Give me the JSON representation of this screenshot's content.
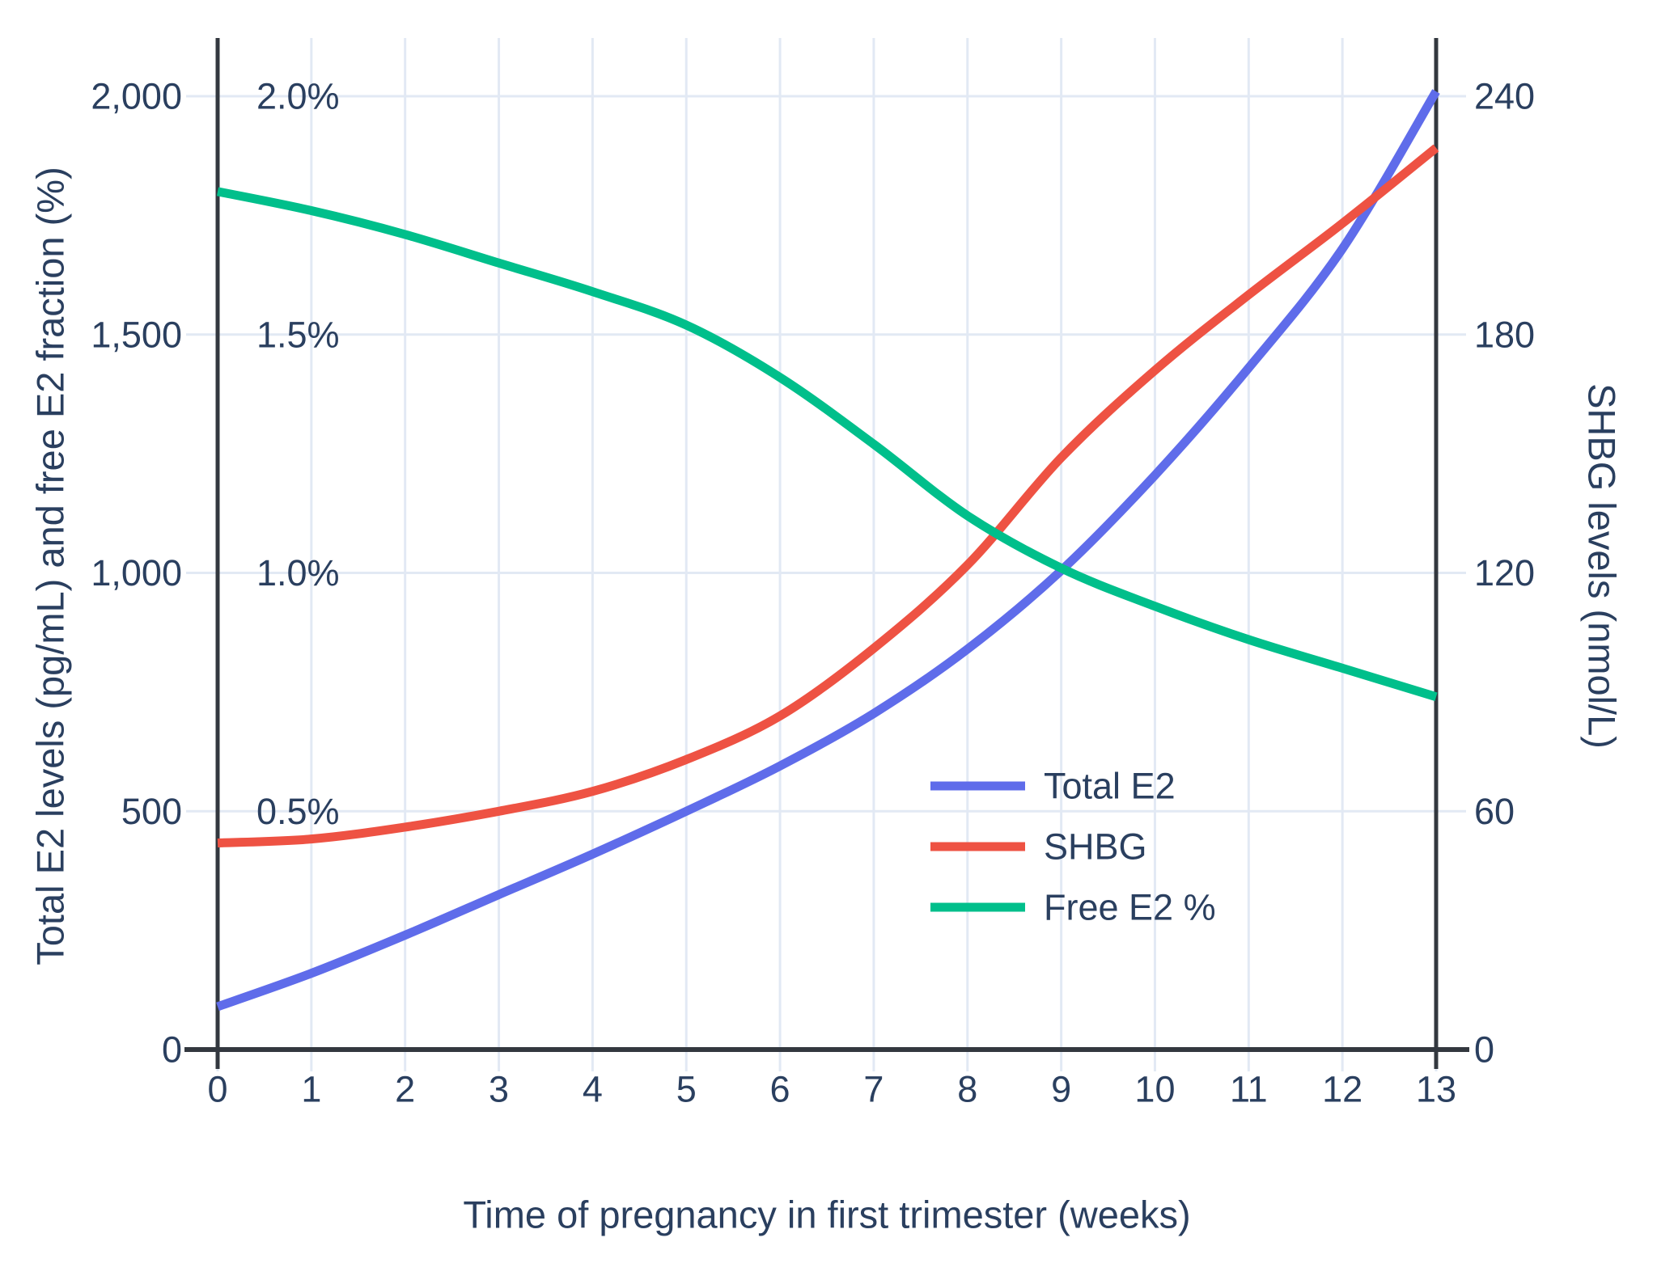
{
  "chart_data": {
    "type": "line",
    "xlabel": "Time of pregnancy in first trimester (weeks)",
    "ylabel_left": "Total E2 levels (pg/mL) and free E2 fraction (%)",
    "ylabel_right": "SHBG levels (nmol/L)",
    "x": [
      0,
      1,
      2,
      3,
      4,
      5,
      6,
      7,
      8,
      9,
      10,
      11,
      12,
      13
    ],
    "x_tick_labels": [
      "0",
      "1",
      "2",
      "3",
      "4",
      "5",
      "6",
      "7",
      "8",
      "9",
      "10",
      "11",
      "12",
      "13"
    ],
    "left_axis": {
      "tick_values": [
        0,
        500,
        1000,
        1500,
        2000
      ],
      "tick_labels": [
        "0",
        "500",
        "1,000",
        "1,500",
        "2,000"
      ],
      "range": [
        0,
        2120
      ]
    },
    "left_percent_labels": {
      "tick_values": [
        500,
        1000,
        1500,
        2000
      ],
      "tick_labels": [
        "0.5%",
        "1.0%",
        "1.5%",
        "2.0%"
      ]
    },
    "right_axis": {
      "tick_values": [
        0,
        60,
        120,
        180,
        240
      ],
      "tick_labels": [
        "0",
        "60",
        "120",
        "180",
        "240"
      ],
      "range": [
        0,
        254
      ]
    },
    "grid": true,
    "legend_position": "inside-right-middle",
    "series": [
      {
        "name": "Total E2",
        "axis": "left",
        "unit": "pg/mL",
        "color": "#5f6cea",
        "values": [
          90,
          160,
          240,
          325,
          410,
          500,
          595,
          705,
          840,
          1005,
          1205,
          1430,
          1680,
          2010
        ]
      },
      {
        "name": "SHBG",
        "axis": "right",
        "unit": "nmol/L",
        "color": "#ee5243",
        "values": [
          52,
          53,
          56,
          60,
          65,
          73,
          84,
          101,
          122,
          149,
          171,
          190,
          208,
          227
        ]
      },
      {
        "name": "Free E2 %",
        "axis": "left-percent",
        "unit": "%",
        "color": "#00bf8b",
        "values": [
          1.8,
          1.76,
          1.71,
          1.65,
          1.59,
          1.52,
          1.41,
          1.27,
          1.12,
          1.01,
          0.93,
          0.86,
          0.8,
          0.74
        ]
      }
    ],
    "colors": {
      "text": "#2a3f5f",
      "grid": "#e2e9f4",
      "axis": "#33383f",
      "background": "#ffffff"
    }
  }
}
